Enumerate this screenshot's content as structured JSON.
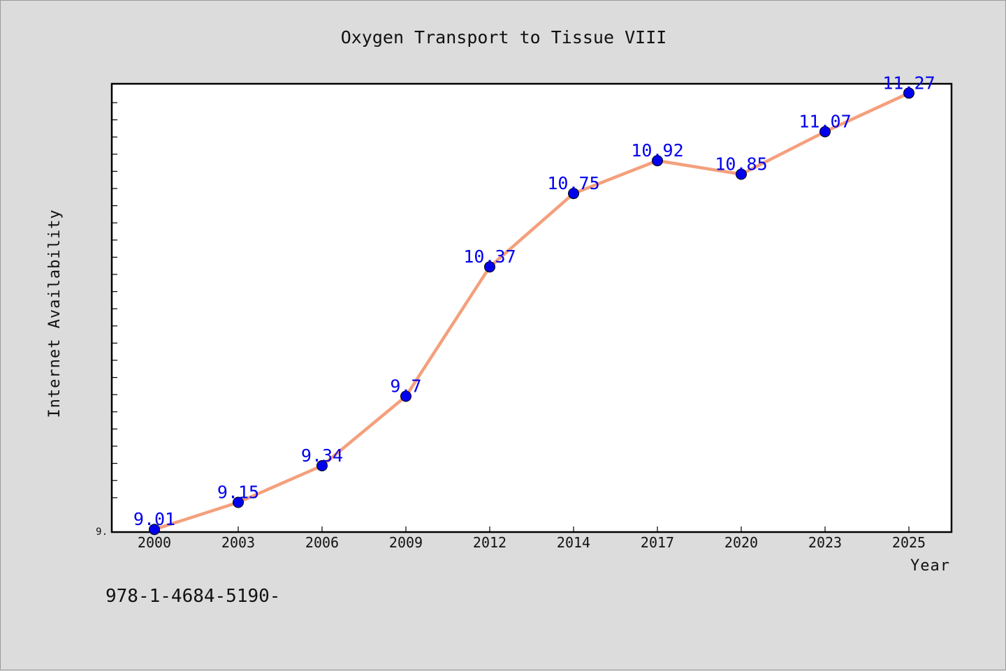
{
  "chart_data": {
    "type": "line",
    "title": "Oxygen Transport to Tissue VIII",
    "xlabel": "Year",
    "ylabel": "Internet Availability",
    "x": [
      "2000",
      "2003",
      "2006",
      "2009",
      "2012",
      "2014",
      "2017",
      "2020",
      "2023",
      "2025"
    ],
    "series": [
      {
        "values": [
          9.01,
          9.15,
          9.34,
          9.7,
          10.37,
          10.75,
          10.92,
          10.85,
          11.07,
          11.27
        ],
        "labels": [
          "9.01",
          "9.15",
          "9.34",
          "9.7",
          "10.37",
          "10.75",
          "10.92",
          "10.85",
          "11.07",
          "11.27"
        ]
      }
    ],
    "ylim": [
      9.0,
      11.6
    ],
    "y_tick_label": "9.",
    "line_color": "#f4a07c",
    "marker_color": "#0000ee",
    "label_color": "#0000ee",
    "background_color": "#dcdcdc",
    "plot_background": "#ffffff",
    "grid": false,
    "legend": "none"
  },
  "footer": {
    "text": "978-1-4684-5190-"
  }
}
